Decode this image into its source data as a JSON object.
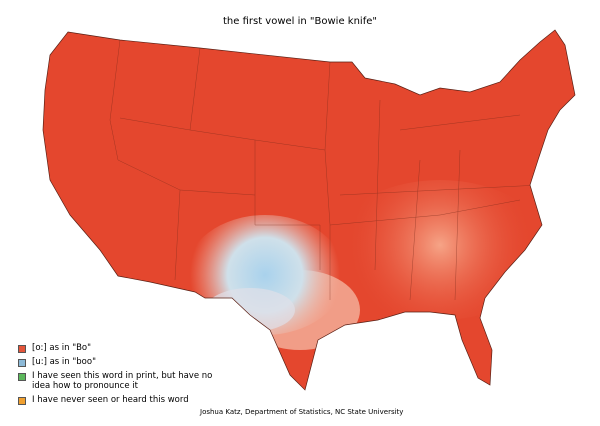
{
  "title": "the first vowel in \"Bowie knife\"",
  "legend": [
    {
      "label": "[o:] as in \"Bo\"",
      "color": "#e4553a"
    },
    {
      "label": "[u:] as in \"boo\"",
      "color": "#8dbad8"
    },
    {
      "label": "I have seen this word in print, but have no idea how to pronounce it",
      "color": "#5cb85c"
    },
    {
      "label": "I have never seen or heard this word",
      "color": "#f0a030"
    }
  ],
  "credit": "Joshua Katz, Department of Statistics, NC State University"
}
